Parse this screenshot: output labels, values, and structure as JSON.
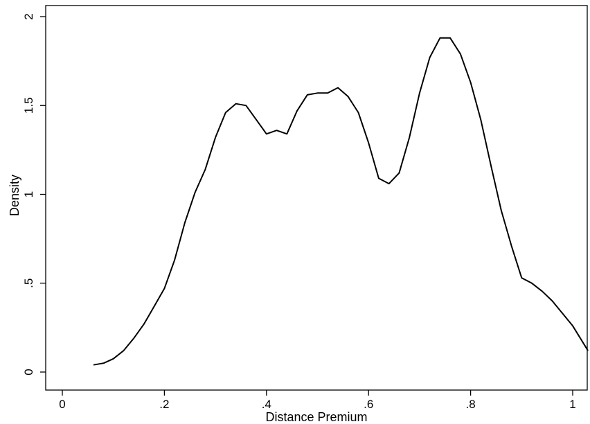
{
  "chart_data": {
    "type": "line",
    "title": "",
    "xlabel": "Distance Premium",
    "ylabel": "Density",
    "xlim": [
      0,
      1.03
    ],
    "ylim": [
      0,
      2
    ],
    "grid": false,
    "legend": "none",
    "x_ticks": [
      {
        "value": 0,
        "label": "0"
      },
      {
        "value": 0.2,
        "label": ".2"
      },
      {
        "value": 0.4,
        "label": ".4"
      },
      {
        "value": 0.6,
        "label": ".6"
      },
      {
        "value": 0.8,
        "label": ".8"
      },
      {
        "value": 1.0,
        "label": "1"
      }
    ],
    "y_ticks": [
      {
        "value": 0,
        "label": "0"
      },
      {
        "value": 0.5,
        "label": ".5"
      },
      {
        "value": 1.0,
        "label": "1"
      },
      {
        "value": 1.5,
        "label": "1.5"
      },
      {
        "value": 2.0,
        "label": "2"
      }
    ],
    "series": [
      {
        "line_color": "#000000",
        "x": [
          0.061,
          0.081,
          0.1,
          0.12,
          0.14,
          0.16,
          0.18,
          0.2,
          0.22,
          0.24,
          0.26,
          0.28,
          0.3,
          0.32,
          0.34,
          0.36,
          0.38,
          0.4,
          0.42,
          0.44,
          0.46,
          0.48,
          0.5,
          0.52,
          0.54,
          0.56,
          0.58,
          0.6,
          0.62,
          0.64,
          0.66,
          0.68,
          0.7,
          0.72,
          0.74,
          0.76,
          0.78,
          0.8,
          0.82,
          0.84,
          0.86,
          0.88,
          0.9,
          0.92,
          0.94,
          0.96,
          0.98,
          1.0,
          1.03
        ],
        "y": [
          0.04,
          0.05,
          0.075,
          0.12,
          0.19,
          0.27,
          0.37,
          0.47,
          0.63,
          0.84,
          1.01,
          1.14,
          1.32,
          1.46,
          1.51,
          1.5,
          1.42,
          1.34,
          1.36,
          1.34,
          1.47,
          1.56,
          1.57,
          1.57,
          1.6,
          1.55,
          1.46,
          1.29,
          1.09,
          1.06,
          1.12,
          1.32,
          1.57,
          1.77,
          1.88,
          1.88,
          1.79,
          1.63,
          1.42,
          1.16,
          0.91,
          0.71,
          0.53,
          0.5,
          0.455,
          0.4,
          0.33,
          0.26,
          0.12
        ]
      }
    ]
  }
}
